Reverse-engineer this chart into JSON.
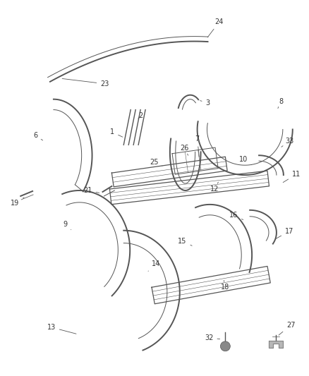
{
  "bg_color": "#ffffff",
  "line_color": "#555555",
  "label_color": "#333333",
  "lw_outer": 1.4,
  "lw_inner": 0.7,
  "lw_label": 0.6,
  "fontsize": 7.0
}
